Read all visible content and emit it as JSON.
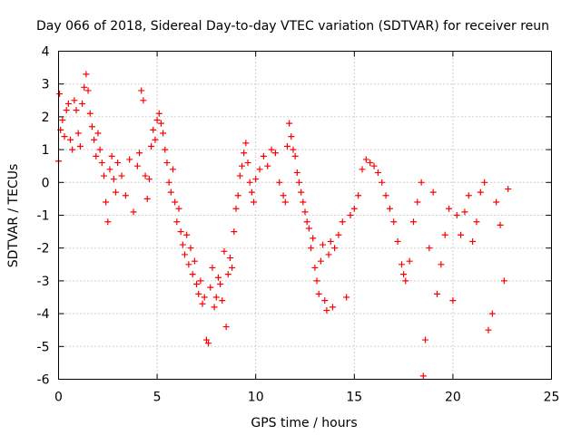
{
  "chart_data": {
    "type": "scatter",
    "title": "Day 066 of 2018, Sidereal Day-to-day VTEC variation (SDTVAR) for receiver reun",
    "xlabel": "GPS time / hours",
    "ylabel": "SDTVAR / TECUs",
    "xlim": [
      0,
      25
    ],
    "ylim": [
      -6,
      4
    ],
    "xticks": [
      0,
      5,
      10,
      15,
      20,
      25
    ],
    "yticks": [
      -6,
      -5,
      -4,
      -3,
      -2,
      -1,
      0,
      1,
      2,
      3,
      4
    ],
    "grid": true,
    "marker": "+",
    "color": "#ff0000",
    "series": [
      {
        "name": "SDTVAR",
        "points": [
          [
            0.0,
            0.65
          ],
          [
            0.05,
            2.7
          ],
          [
            0.1,
            1.6
          ],
          [
            0.2,
            1.9
          ],
          [
            0.3,
            1.4
          ],
          [
            0.4,
            2.2
          ],
          [
            0.5,
            2.4
          ],
          [
            0.6,
            1.3
          ],
          [
            0.7,
            1.0
          ],
          [
            0.8,
            2.5
          ],
          [
            0.9,
            2.2
          ],
          [
            1.0,
            1.5
          ],
          [
            1.1,
            1.1
          ],
          [
            1.2,
            2.4
          ],
          [
            1.3,
            2.9
          ],
          [
            1.4,
            3.3
          ],
          [
            1.5,
            2.8
          ],
          [
            1.6,
            2.1
          ],
          [
            1.7,
            1.7
          ],
          [
            1.8,
            1.3
          ],
          [
            1.9,
            0.8
          ],
          [
            2.0,
            1.5
          ],
          [
            2.1,
            1.0
          ],
          [
            2.2,
            0.6
          ],
          [
            2.3,
            0.2
          ],
          [
            2.4,
            -0.6
          ],
          [
            2.5,
            -1.2
          ],
          [
            2.6,
            0.4
          ],
          [
            2.7,
            0.8
          ],
          [
            2.8,
            0.1
          ],
          [
            2.9,
            -0.3
          ],
          [
            3.0,
            0.6
          ],
          [
            3.2,
            0.2
          ],
          [
            3.4,
            -0.4
          ],
          [
            3.6,
            0.7
          ],
          [
            3.8,
            -0.9
          ],
          [
            4.0,
            0.5
          ],
          [
            4.1,
            0.9
          ],
          [
            4.2,
            2.8
          ],
          [
            4.3,
            2.5
          ],
          [
            4.4,
            0.2
          ],
          [
            4.5,
            -0.5
          ],
          [
            4.6,
            0.1
          ],
          [
            4.7,
            1.1
          ],
          [
            4.8,
            1.6
          ],
          [
            4.9,
            1.3
          ],
          [
            5.0,
            1.9
          ],
          [
            5.1,
            2.1
          ],
          [
            5.2,
            1.8
          ],
          [
            5.3,
            1.5
          ],
          [
            5.4,
            1.0
          ],
          [
            5.5,
            0.6
          ],
          [
            5.6,
            0.0
          ],
          [
            5.7,
            -0.3
          ],
          [
            5.8,
            0.4
          ],
          [
            5.9,
            -0.6
          ],
          [
            6.0,
            -1.2
          ],
          [
            6.1,
            -0.8
          ],
          [
            6.2,
            -1.5
          ],
          [
            6.3,
            -1.9
          ],
          [
            6.4,
            -2.2
          ],
          [
            6.5,
            -1.6
          ],
          [
            6.6,
            -2.5
          ],
          [
            6.7,
            -2.0
          ],
          [
            6.8,
            -2.8
          ],
          [
            6.9,
            -2.4
          ],
          [
            7.0,
            -3.1
          ],
          [
            7.1,
            -3.4
          ],
          [
            7.2,
            -3.0
          ],
          [
            7.3,
            -3.7
          ],
          [
            7.4,
            -3.5
          ],
          [
            7.5,
            -4.8
          ],
          [
            7.6,
            -4.9
          ],
          [
            7.7,
            -3.2
          ],
          [
            7.8,
            -2.6
          ],
          [
            7.9,
            -3.8
          ],
          [
            8.0,
            -3.5
          ],
          [
            8.1,
            -2.9
          ],
          [
            8.2,
            -3.1
          ],
          [
            8.3,
            -3.6
          ],
          [
            8.4,
            -2.1
          ],
          [
            8.5,
            -4.4
          ],
          [
            8.6,
            -2.8
          ],
          [
            8.7,
            -2.3
          ],
          [
            8.8,
            -2.6
          ],
          [
            8.9,
            -1.5
          ],
          [
            9.0,
            -0.8
          ],
          [
            9.1,
            -0.4
          ],
          [
            9.2,
            0.2
          ],
          [
            9.3,
            0.5
          ],
          [
            9.4,
            0.9
          ],
          [
            9.5,
            1.2
          ],
          [
            9.6,
            0.6
          ],
          [
            9.7,
            0.0
          ],
          [
            9.8,
            -0.3
          ],
          [
            9.9,
            -0.6
          ],
          [
            10.0,
            0.1
          ],
          [
            10.2,
            0.4
          ],
          [
            10.4,
            0.8
          ],
          [
            10.6,
            0.5
          ],
          [
            10.8,
            1.0
          ],
          [
            11.0,
            0.9
          ],
          [
            11.2,
            0.0
          ],
          [
            11.4,
            -0.4
          ],
          [
            11.5,
            -0.6
          ],
          [
            11.6,
            1.1
          ],
          [
            11.7,
            1.8
          ],
          [
            11.8,
            1.4
          ],
          [
            11.9,
            1.0
          ],
          [
            12.0,
            0.8
          ],
          [
            12.1,
            0.3
          ],
          [
            12.2,
            0.0
          ],
          [
            12.3,
            -0.3
          ],
          [
            12.4,
            -0.6
          ],
          [
            12.5,
            -0.9
          ],
          [
            12.6,
            -1.2
          ],
          [
            12.7,
            -1.4
          ],
          [
            12.8,
            -2.0
          ],
          [
            12.9,
            -1.7
          ],
          [
            13.0,
            -2.6
          ],
          [
            13.1,
            -3.0
          ],
          [
            13.2,
            -3.4
          ],
          [
            13.3,
            -2.4
          ],
          [
            13.4,
            -1.9
          ],
          [
            13.5,
            -3.6
          ],
          [
            13.6,
            -3.9
          ],
          [
            13.7,
            -2.2
          ],
          [
            13.8,
            -1.8
          ],
          [
            13.9,
            -3.8
          ],
          [
            14.0,
            -2.0
          ],
          [
            14.2,
            -1.6
          ],
          [
            14.4,
            -1.2
          ],
          [
            14.6,
            -3.5
          ],
          [
            14.8,
            -1.0
          ],
          [
            15.0,
            -0.8
          ],
          [
            15.2,
            -0.4
          ],
          [
            15.4,
            0.4
          ],
          [
            15.6,
            0.7
          ],
          [
            15.8,
            0.6
          ],
          [
            16.0,
            0.5
          ],
          [
            16.2,
            0.3
          ],
          [
            16.4,
            0.0
          ],
          [
            16.6,
            -0.4
          ],
          [
            16.8,
            -0.8
          ],
          [
            17.0,
            -1.2
          ],
          [
            17.2,
            -1.8
          ],
          [
            17.4,
            -2.5
          ],
          [
            17.5,
            -2.8
          ],
          [
            17.6,
            -3.0
          ],
          [
            17.8,
            -2.4
          ],
          [
            18.0,
            -1.2
          ],
          [
            18.2,
            -0.6
          ],
          [
            18.4,
            0.0
          ],
          [
            18.5,
            -5.9
          ],
          [
            18.6,
            -4.8
          ],
          [
            18.8,
            -2.0
          ],
          [
            19.0,
            -0.3
          ],
          [
            19.2,
            -3.4
          ],
          [
            19.4,
            -2.5
          ],
          [
            19.6,
            -1.6
          ],
          [
            19.8,
            -0.8
          ],
          [
            20.0,
            -3.6
          ],
          [
            20.2,
            -1.0
          ],
          [
            20.4,
            -1.6
          ],
          [
            20.6,
            -0.9
          ],
          [
            20.8,
            -0.4
          ],
          [
            21.0,
            -1.8
          ],
          [
            21.2,
            -1.2
          ],
          [
            21.4,
            -0.3
          ],
          [
            21.6,
            0.0
          ],
          [
            21.8,
            -4.5
          ],
          [
            22.0,
            -4.0
          ],
          [
            22.2,
            -0.6
          ],
          [
            22.4,
            -1.3
          ],
          [
            22.6,
            -3.0
          ],
          [
            22.8,
            -0.2
          ]
        ]
      }
    ]
  }
}
